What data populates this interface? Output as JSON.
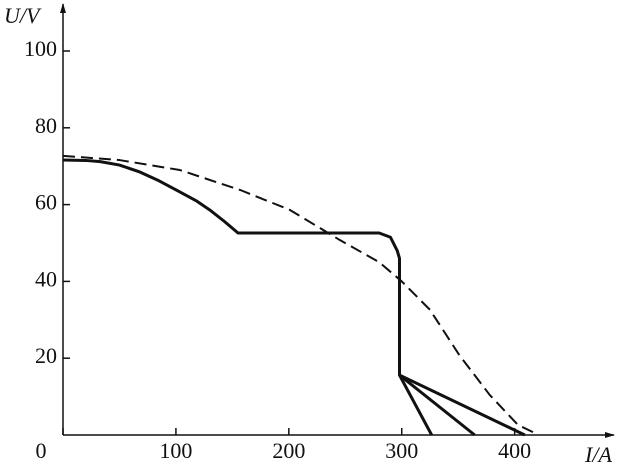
{
  "chart_data": {
    "type": "line",
    "y_label": "U/V",
    "x_label": "I/A",
    "xlim": [
      0,
      480
    ],
    "ylim": [
      0,
      110
    ],
    "xticks": [
      0,
      100,
      200,
      300,
      400
    ],
    "yticks": [
      20,
      40,
      60,
      80,
      100
    ],
    "series": [
      {
        "color": "#111111",
        "dash": false,
        "x": [
          0,
          20,
          33,
          50,
          68,
          85,
          103.5,
          118,
          130,
          143,
          155,
          200,
          250,
          280,
          290,
          296,
          298,
          298,
          326.5
        ],
        "values": [
          71.6,
          71.5,
          71.2,
          70.3,
          68.5,
          66.2,
          63.3,
          61,
          58.6,
          55.6,
          52.6,
          52.6,
          52.6,
          52.6,
          51.5,
          48,
          46,
          15.6,
          0
        ]
      },
      {
        "color": "#111111",
        "dash": false,
        "x": [
          298,
          364.6
        ],
        "values": [
          15.6,
          0
        ]
      },
      {
        "color": "#111111",
        "dash": false,
        "x": [
          298,
          409
        ],
        "values": [
          15.6,
          0
        ]
      },
      {
        "color": "#111111",
        "dash": true,
        "x": [
          0,
          50,
          103.5,
          157,
          201,
          245,
          280,
          300,
          325,
          351,
          378,
          403,
          418
        ],
        "values": [
          72.7,
          71.6,
          69,
          63.8,
          58.6,
          50.8,
          45,
          40,
          32.6,
          20.8,
          10.4,
          2.6,
          0.5
        ]
      }
    ]
  }
}
